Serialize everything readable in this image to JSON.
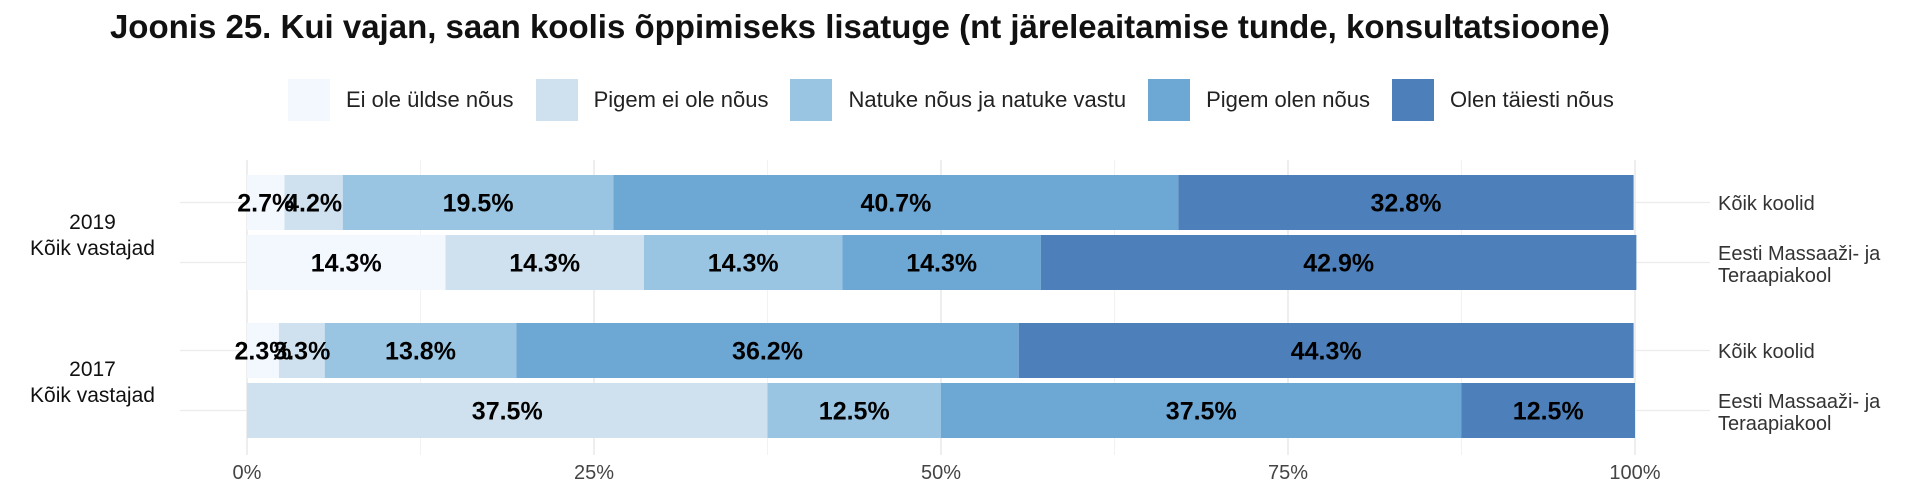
{
  "chart_data": {
    "type": "bar",
    "orientation": "horizontal",
    "stacked": true,
    "title": "Joonis 25. Kui vajan, saan koolis õppimiseks lisatuge (nt järeleaitamise tunde, konsultatsioone)",
    "legend_position": "top",
    "series": [
      {
        "name": "Ei ole üldse nõus",
        "color": "#f3f7fe"
      },
      {
        "name": "Pigem ei ole nõus",
        "color": "#cfe1ee"
      },
      {
        "name": "Natuke nõus ja natuke vastu",
        "color": "#99c5e3"
      },
      {
        "name": "Pigem olen nõus",
        "color": "#6da7d4"
      },
      {
        "name": "Olen täiesti nõus",
        "color": "#4d80ba"
      }
    ],
    "groups": [
      {
        "label_line1": "2019",
        "label_line2": "Kõik vastajad",
        "rows": [
          {
            "label_line1": "Kõik koolid",
            "label_line2": "",
            "values": [
              2.7,
              4.2,
              19.5,
              40.7,
              32.8
            ],
            "labels": [
              "2.7%",
              "4.2%",
              "19.5%",
              "40.7%",
              "32.8%"
            ]
          },
          {
            "label_line1": "Eesti Massaaži- ja",
            "label_line2": "Teraapiakool",
            "values": [
              14.3,
              14.3,
              14.3,
              14.3,
              42.9
            ],
            "labels": [
              "14.3%",
              "14.3%",
              "14.3%",
              "14.3%",
              "42.9%"
            ]
          }
        ]
      },
      {
        "label_line1": "2017",
        "label_line2": "Kõik vastajad",
        "rows": [
          {
            "label_line1": "Kõik koolid",
            "label_line2": "",
            "values": [
              2.3,
              3.3,
              13.8,
              36.2,
              44.3
            ],
            "labels": [
              "2.3%",
              "3.3%",
              "13.8%",
              "36.2%",
              "44.3%"
            ]
          },
          {
            "label_line1": "Eesti Massaaži- ja",
            "label_line2": "Teraapiakool",
            "values": [
              0,
              37.5,
              12.5,
              37.5,
              12.5
            ],
            "labels": [
              "",
              "37.5%",
              "12.5%",
              "37.5%",
              "12.5%"
            ]
          }
        ]
      }
    ],
    "x_ticks": [
      "0%",
      "25%",
      "50%",
      "75%",
      "100%"
    ],
    "xlim": [
      0,
      100
    ],
    "grid": true
  }
}
